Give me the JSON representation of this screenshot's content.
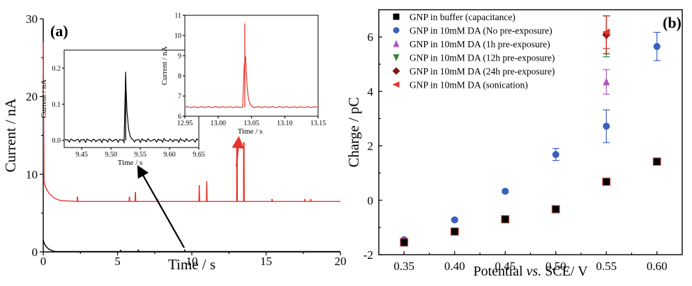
{
  "panel_labels": {
    "a": "(a)",
    "b": "(b)"
  },
  "chart_data": [
    {
      "type": "line",
      "panel": "(a)",
      "xlabel": "Time / s",
      "ylabel": "Current / nA",
      "xlim": [
        0,
        20
      ],
      "ylim": [
        0,
        30
      ],
      "xticks": [
        0,
        5,
        10,
        15,
        20
      ],
      "yticks": [
        0,
        10,
        20,
        30
      ],
      "series": [
        {
          "color": "#e8332a",
          "baseline": 6.5,
          "spikes": [
            {
              "x": 2.3,
              "y": 7.1
            },
            {
              "x": 5.8,
              "y": 7.1
            },
            {
              "x": 6.2,
              "y": 7.7
            },
            {
              "x": 7.7,
              "y": 6.8
            },
            {
              "x": 10.5,
              "y": 8.6
            },
            {
              "x": 11.0,
              "y": 9.1
            },
            {
              "x": 13.04,
              "y": 10.6
            },
            {
              "x": 13.5,
              "y": 14.0
            },
            {
              "x": 15.4,
              "y": 6.8
            },
            {
              "x": 17.6,
              "y": 6.8
            },
            {
              "x": 18.0,
              "y": 6.8
            }
          ]
        },
        {
          "color": "#000000",
          "baseline": 0.05,
          "spikes": [
            {
              "x": 5.2,
              "y": 0.25
            },
            {
              "x": 6.4,
              "y": 0.3
            },
            {
              "x": 9.52,
              "y": 0.2
            }
          ]
        }
      ],
      "insets": [
        {
          "xlabel": "Time / s",
          "ylabel": "Current / nA",
          "xlim": [
            9.42,
            9.65
          ],
          "ylim": [
            -0.02,
            0.25
          ],
          "xticks": [
            "9.45",
            "9.50",
            "9.55",
            "9.60",
            "9.65"
          ],
          "yticks": [
            "0.0",
            "0.1",
            "0.2"
          ],
          "color": "#000000",
          "peak_x": 9.525,
          "peak_y": 0.19,
          "baseline": 0.0
        },
        {
          "xlabel": "Time / s",
          "ylabel": "Current / nA",
          "xlim": [
            12.95,
            13.15
          ],
          "ylim": [
            6,
            11
          ],
          "xticks": [
            "12.95",
            "13.00",
            "13.05",
            "13.10",
            "13.15"
          ],
          "yticks": [
            "6",
            "7",
            "8",
            "9",
            "10",
            "11"
          ],
          "color": "#e8332a",
          "peak_x": 13.04,
          "peak_y": 10.6,
          "baseline": 6.45
        }
      ]
    },
    {
      "type": "scatter",
      "panel": "(b)",
      "xlabel": "Potential vs. SCE/ V",
      "xlabel_parts": [
        "Potential ",
        "vs.",
        " SCE/ V"
      ],
      "ylabel": "Charge / pC",
      "xlim": [
        0.325,
        0.625
      ],
      "ylim": [
        -2,
        7
      ],
      "xticks": [
        "0.35",
        "0.40",
        "0.45",
        "0.50",
        "0.55",
        "0.60"
      ],
      "yticks": [
        "-2",
        "0",
        "2",
        "4",
        "6"
      ],
      "legend_position": "top-left",
      "series": [
        {
          "name": "GNP in buffer (capacitance)",
          "marker": "square",
          "color": "#000000",
          "x": [
            0.35,
            0.4,
            0.45,
            0.5,
            0.55,
            0.6
          ],
          "y": [
            -1.55,
            -1.15,
            -0.7,
            -0.33,
            0.68,
            1.42
          ],
          "err": [
            0.05,
            0.05,
            0.05,
            0.05,
            0.05,
            0.08
          ]
        },
        {
          "name": "GNP in 10mM DA (No pre-exposure)",
          "marker": "circle",
          "color": "#3b5fc0",
          "x": [
            0.35,
            0.4,
            0.45,
            0.5,
            0.55,
            0.6
          ],
          "y": [
            -1.45,
            -0.72,
            0.33,
            1.68,
            2.72,
            5.65
          ],
          "err": [
            0.05,
            0.05,
            0.05,
            0.22,
            0.6,
            0.52
          ]
        },
        {
          "name": "GNP in 10mM DA (1h pre-exposure)",
          "marker": "triangle-up",
          "color": "#b056c0",
          "x": [
            0.55
          ],
          "y": [
            4.35
          ],
          "err": [
            0.45
          ]
        },
        {
          "name": "GNP in 10mM DA (12h pre-exposure)",
          "marker": "triangle-down",
          "color": "#2f8a3a",
          "x": [
            0.55
          ],
          "y": [
            6.02
          ],
          "err": [
            0.75
          ]
        },
        {
          "name": "GNP in 10mM DA (24h pre-exposure)",
          "marker": "diamond",
          "color": "#7a1a1a",
          "x": [
            0.55
          ],
          "y": [
            6.08
          ],
          "err": [
            0.7
          ]
        },
        {
          "name": "GNP in 10mM DA (sonication)",
          "marker": "triangle-left",
          "color": "#e8332a",
          "x": [
            0.55
          ],
          "y": [
            6.18
          ],
          "err": [
            0.6
          ]
        }
      ]
    }
  ]
}
